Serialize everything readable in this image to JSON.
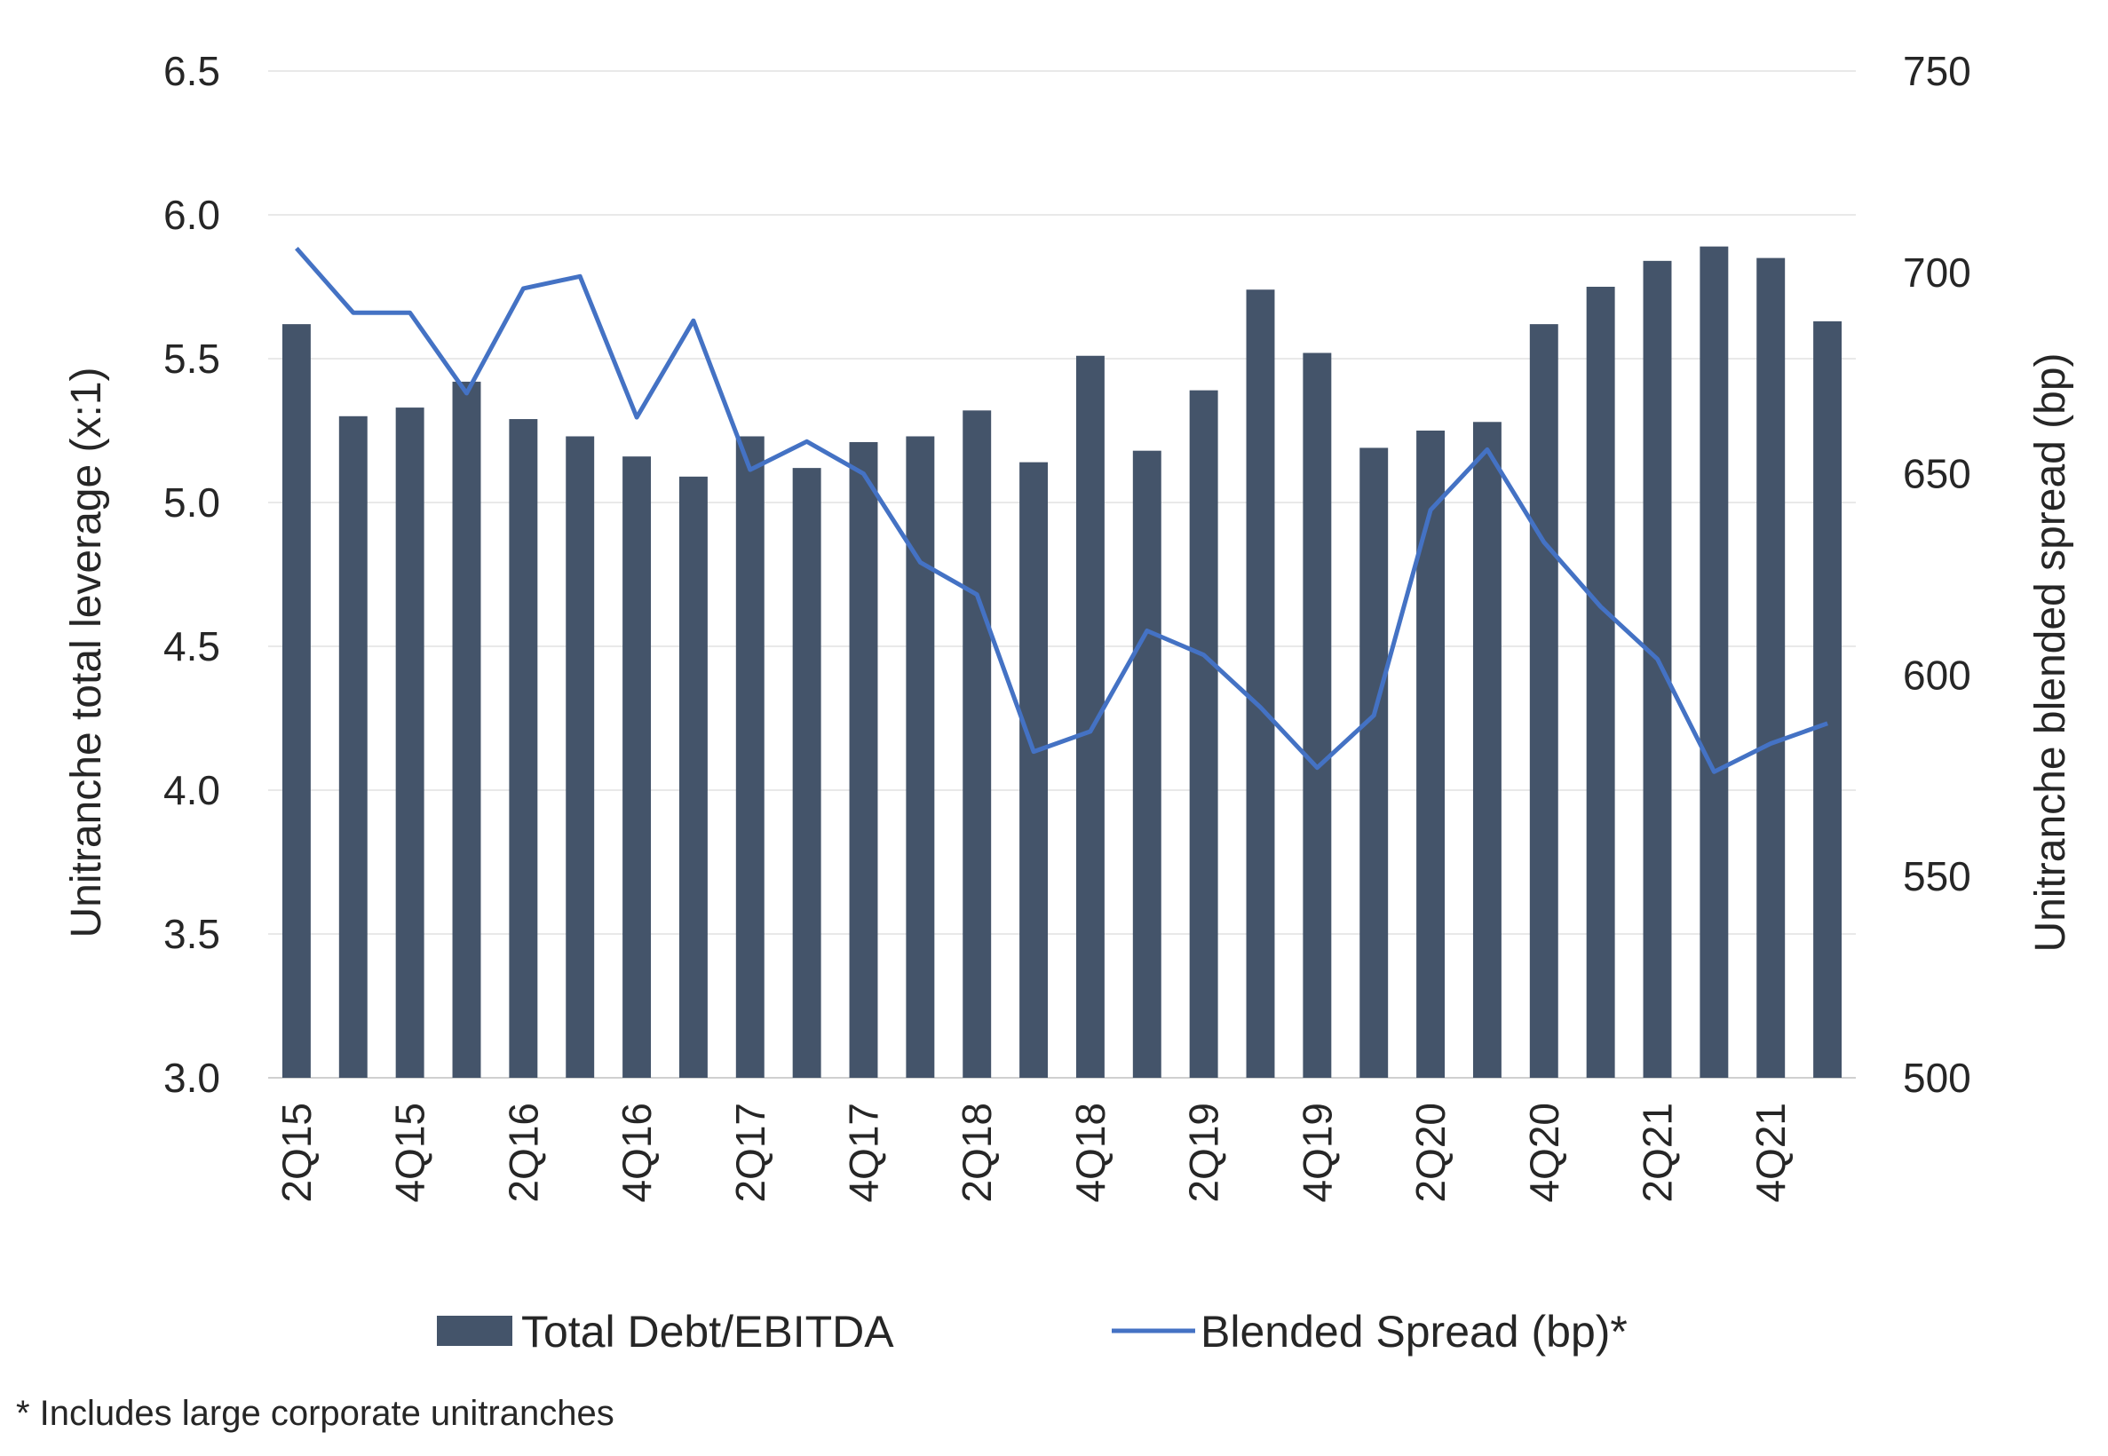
{
  "chart_data": {
    "type": "bar",
    "categories": [
      "2Q15",
      "3Q15",
      "4Q15",
      "1Q16",
      "2Q16",
      "3Q16",
      "4Q16",
      "1Q17",
      "2Q17",
      "3Q17",
      "4Q17",
      "1Q18",
      "2Q18",
      "3Q18",
      "4Q18",
      "1Q19",
      "2Q19",
      "3Q19",
      "4Q19",
      "1Q20",
      "2Q20",
      "3Q20",
      "4Q20",
      "1Q21",
      "2Q21",
      "3Q21",
      "4Q21",
      "1Q22"
    ],
    "x_tick_labels": [
      "2Q15",
      "4Q15",
      "2Q16",
      "4Q16",
      "2Q17",
      "4Q17",
      "2Q18",
      "4Q18",
      "2Q19",
      "4Q19",
      "2Q20",
      "4Q20",
      "2Q21",
      "4Q21"
    ],
    "series": [
      {
        "name": "Total Debt/EBITDA",
        "type": "bar",
        "axis": "left",
        "color": "#44546a",
        "values": [
          5.62,
          5.3,
          5.33,
          5.42,
          5.29,
          5.23,
          5.16,
          5.09,
          5.23,
          5.12,
          5.21,
          5.23,
          5.32,
          5.14,
          5.51,
          5.18,
          5.39,
          5.74,
          5.52,
          5.19,
          5.25,
          5.28,
          5.62,
          5.75,
          5.84,
          5.89,
          5.85,
          5.63
        ]
      },
      {
        "name": "Blended Spread (bp)*",
        "type": "line",
        "axis": "right",
        "color": "#4472c4",
        "values": [
          706,
          690,
          690,
          670,
          696,
          699,
          664,
          688,
          651,
          658,
          650,
          628,
          620,
          581,
          586,
          611,
          605,
          592,
          577,
          590,
          641,
          656,
          633,
          617,
          604,
          576,
          583,
          588
        ]
      }
    ],
    "left_axis": {
      "label": "Unitranche total leverage (x:1)",
      "min": 3.0,
      "max": 6.5,
      "ticks": [
        "3.0",
        "3.5",
        "4.0",
        "4.5",
        "5.0",
        "5.5",
        "6.0",
        "6.5"
      ]
    },
    "right_axis": {
      "label": "Unitranche blended spread (bp)",
      "min": 500,
      "max": 750,
      "ticks": [
        "500",
        "550",
        "600",
        "650",
        "700",
        "750"
      ]
    },
    "grid": true,
    "legend_position": "bottom",
    "footnote": "* Includes large corporate unitranches"
  }
}
